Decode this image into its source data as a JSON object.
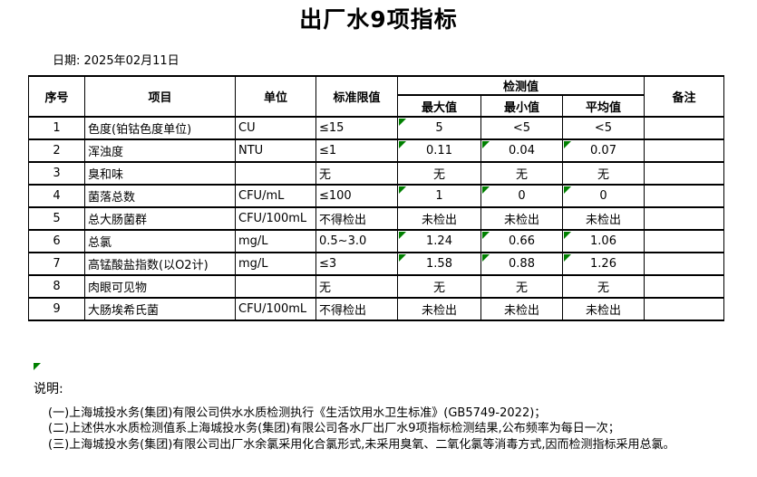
{
  "title": "出厂水9项指标",
  "date": {
    "text": "日期: 2025年02月11日"
  },
  "table": {
    "headers": {
      "seq": "序号",
      "item": "项目",
      "unit": "单位",
      "limit": "标准限值",
      "detection": "检测值",
      "max": "最大值",
      "min": "最小值",
      "avg": "平均值",
      "remark": "备注"
    },
    "rows": [
      {
        "seq": "1",
        "item": "色度(铂钴色度单位)",
        "unit": "CU",
        "limit": "≤15",
        "max": "5",
        "min": "<5",
        "avg": "<5",
        "remark": "",
        "markers": [
          "max"
        ]
      },
      {
        "seq": "2",
        "item": "浑浊度",
        "unit": "NTU",
        "limit": "≤1",
        "max": "0.11",
        "min": "0.04",
        "avg": "0.07",
        "remark": "",
        "markers": [
          "max",
          "min",
          "avg"
        ]
      },
      {
        "seq": "3",
        "item": "臭和味",
        "unit": "",
        "limit": "无",
        "max": "无",
        "min": "无",
        "avg": "无",
        "remark": "",
        "markers": []
      },
      {
        "seq": "4",
        "item": "菌落总数",
        "unit": "CFU/mL",
        "limit": "≤100",
        "max": "1",
        "min": "0",
        "avg": "0",
        "remark": "",
        "markers": [
          "max",
          "min",
          "avg"
        ]
      },
      {
        "seq": "5",
        "item": "总大肠菌群",
        "unit": "CFU/100mL",
        "limit": "不得检出",
        "max": "未检出",
        "min": "未检出",
        "avg": "未检出",
        "remark": "",
        "markers": []
      },
      {
        "seq": "6",
        "item": "总氯",
        "unit": "mg/L",
        "limit": "0.5~3.0",
        "max": "1.24",
        "min": "0.66",
        "avg": "1.06",
        "remark": "",
        "markers": [
          "max",
          "min",
          "avg"
        ]
      },
      {
        "seq": "7",
        "item": "高锰酸盐指数(以O2计)",
        "unit": "mg/L",
        "limit": "≤3",
        "max": "1.58",
        "min": "0.88",
        "avg": "1.26",
        "remark": "",
        "markers": [
          "max",
          "min",
          "avg"
        ]
      },
      {
        "seq": "8",
        "item": "肉眼可见物",
        "unit": "",
        "limit": "无",
        "max": "无",
        "min": "无",
        "avg": "无",
        "remark": "",
        "markers": []
      },
      {
        "seq": "9",
        "item": "大肠埃希氏菌",
        "unit": "CFU/100mL",
        "limit": "不得检出",
        "max": "未检出",
        "min": "未检出",
        "avg": "未检出",
        "remark": "",
        "markers": []
      }
    ]
  },
  "notes": {
    "label": "说明:",
    "items": [
      "(一)上海城投水务(集团)有限公司供水水质检测执行《生活饮用水卫生标准》(GB5749-2022)；",
      "(二)上述供水水质检测值系上海城投水务(集团)有限公司各水厂出厂水9项指标检测结果,公布频率为每日一次；",
      "(三)上海城投水务(集团)有限公司出厂水余氯采用化合氯形式,未采用臭氧、二氧化氯等消毒方式,因而检测指标采用总氯。"
    ]
  },
  "colors": {
    "marker_green": "#008000",
    "border": "#000000",
    "text": "#000000",
    "background": "#ffffff"
  }
}
